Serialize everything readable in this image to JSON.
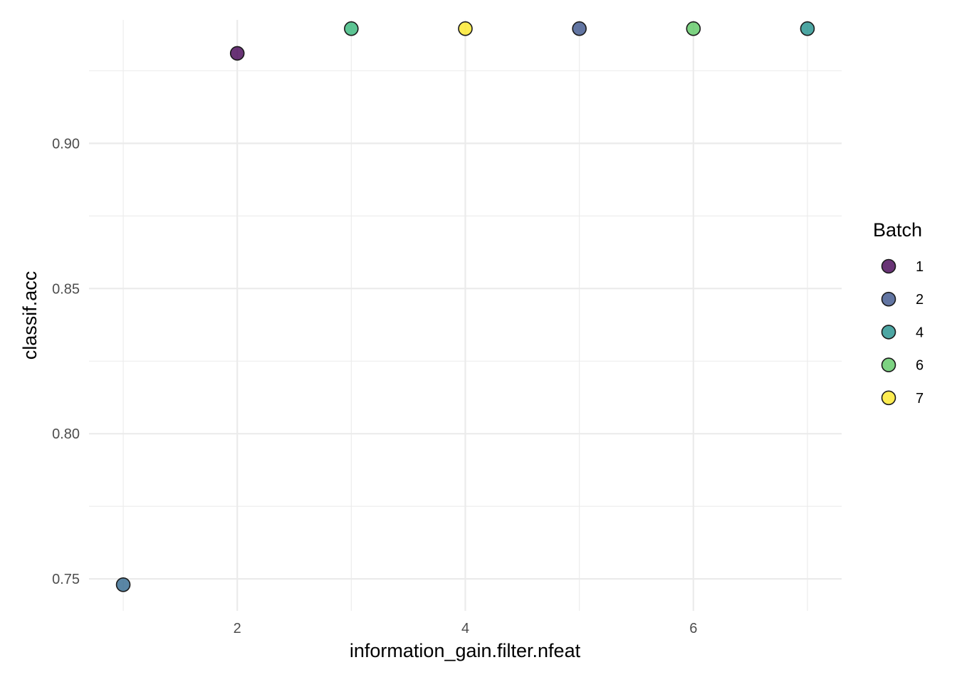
{
  "chart_data": {
    "type": "scatter",
    "xlabel": "information_gain.filter.nfeat",
    "ylabel": "classif.acc",
    "xlim": [
      0.7,
      7.3
    ],
    "ylim": [
      0.739,
      0.9425
    ],
    "x_ticks": [
      2,
      4,
      6
    ],
    "x_tick_labels": [
      "2",
      "4",
      "6"
    ],
    "x_minor_ticks": [
      1,
      3,
      5,
      7
    ],
    "y_ticks": [
      0.75,
      0.8,
      0.85,
      0.9
    ],
    "y_tick_labels": [
      "0.75",
      "0.80",
      "0.85",
      "0.90"
    ],
    "y_minor_ticks": [
      0.775,
      0.825,
      0.875,
      0.925
    ],
    "grid": true,
    "legend_position": "right",
    "legend": {
      "title": "Batch",
      "entries": [
        {
          "label": "1",
          "color": "#440154"
        },
        {
          "label": "2",
          "color": "#3B528B"
        },
        {
          "label": "4",
          "color": "#21908C"
        },
        {
          "label": "6",
          "color": "#5DC863"
        },
        {
          "label": "7",
          "color": "#FDE725"
        }
      ]
    },
    "point_alpha": 0.8,
    "points": [
      {
        "x": 1,
        "y": 0.748,
        "color": "#31688E"
      },
      {
        "x": 2,
        "y": 0.931,
        "batch": "1",
        "color": "#440154"
      },
      {
        "x": 3,
        "y": 0.9395,
        "color": "#35B779"
      },
      {
        "x": 4,
        "y": 0.9395,
        "batch": "7",
        "color": "#FDE725"
      },
      {
        "x": 5,
        "y": 0.9395,
        "batch": "2",
        "color": "#3B528B"
      },
      {
        "x": 6,
        "y": 0.9395,
        "batch": "6",
        "color": "#5DC863"
      },
      {
        "x": 7,
        "y": 0.9395,
        "batch": "4",
        "color": "#21908C"
      }
    ]
  }
}
